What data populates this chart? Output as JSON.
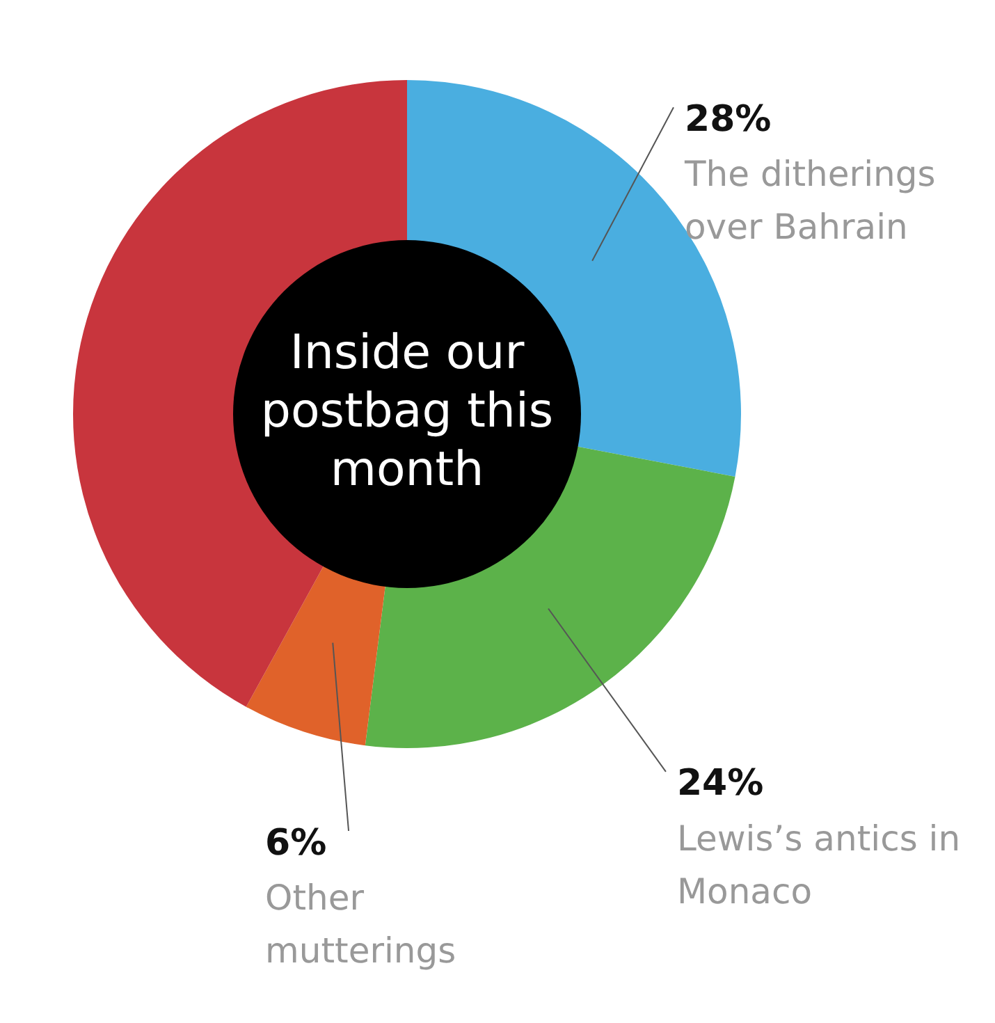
{
  "chart_data": {
    "type": "donut",
    "title": "Inside our postbag this month",
    "categories": [
      "The ditherings over Bahrain",
      "Lewis’s antics in Monaco",
      "Other mutterings",
      null
    ],
    "values": [
      28,
      24,
      6,
      42
    ],
    "colors": [
      "#4aaee0",
      "#5cb24a",
      "#e0622a",
      "#c8353d"
    ],
    "value_labels": [
      "28%",
      "24%",
      "6%",
      null
    ],
    "legend": false
  }
}
